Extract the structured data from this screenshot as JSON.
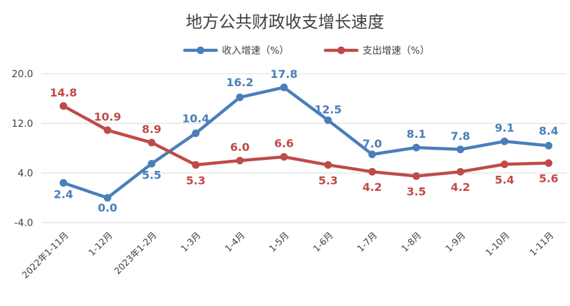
{
  "chart_data": {
    "type": "line",
    "title": "地方公共财政收支增长速度",
    "categories": [
      "2022年1-11月",
      "1-12月",
      "2023年1-2月",
      "1-3月",
      "1-4月",
      "1-5月",
      "1-6月",
      "1-7月",
      "1-8月",
      "1-9月",
      "1-10月",
      "1-11月"
    ],
    "series": [
      {
        "name": "收入增速（%）",
        "color": "#4a7ebb",
        "values": [
          2.4,
          0.0,
          5.5,
          10.4,
          16.2,
          17.8,
          12.5,
          7.0,
          8.1,
          7.8,
          9.1,
          8.4
        ],
        "labels": [
          "2.4",
          "0.0",
          "5.5",
          "10.4",
          "16.2",
          "17.8",
          "12.5",
          "7.0",
          "8.1",
          "7.8",
          "9.1",
          "8.4"
        ]
      },
      {
        "name": "支出增速（%）",
        "color": "#be4b48",
        "values": [
          14.8,
          10.9,
          8.9,
          5.3,
          6.0,
          6.6,
          5.3,
          4.2,
          3.5,
          4.2,
          5.4,
          5.6
        ],
        "labels": [
          "14.8",
          "10.9",
          "8.9",
          "5.3",
          "6.0",
          "6.6",
          "5.3",
          "4.2",
          "3.5",
          "4.2",
          "5.4",
          "5.6"
        ]
      }
    ],
    "ylim": [
      -4,
      20
    ],
    "yticks": [
      "20.0",
      "12.0",
      "4.0",
      "-4.0"
    ],
    "ytick_values": [
      20,
      12,
      4,
      -4
    ],
    "grid": true,
    "legend": "top-center"
  }
}
